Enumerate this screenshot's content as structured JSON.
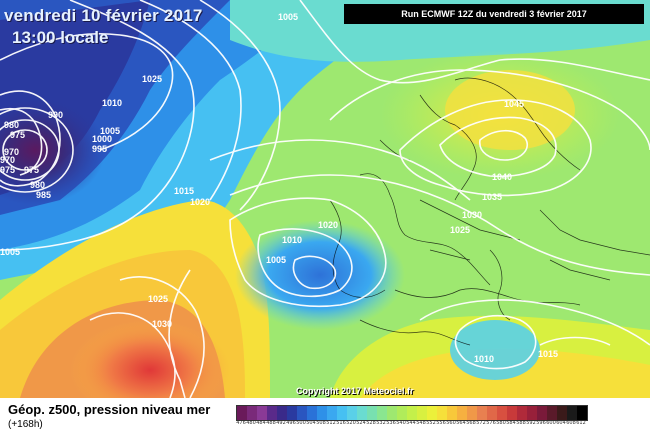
{
  "header": {
    "date": "vendredi 10 février 2017",
    "time": "13:00 locale",
    "run": "Run ECMWF 12Z du vendredi 3 février 2017"
  },
  "copyright": "Copyright 2017 Meteociel.fr",
  "footer": {
    "title": "Géop. z500, pression niveau mer",
    "subtitle": "(+168h)"
  },
  "legend": {
    "colors": [
      "#6a1a5a",
      "#7a2a7a",
      "#8a3a96",
      "#5a2a8a",
      "#3a2a8a",
      "#2a3aa0",
      "#2a56c0",
      "#2a72d8",
      "#2e90e8",
      "#3aa8f0",
      "#46c0f2",
      "#5ad0e8",
      "#6adcd0",
      "#78e0b0",
      "#8ae690",
      "#9ee870",
      "#b0ec5a",
      "#c4f04a",
      "#d8f040",
      "#ecf03a",
      "#f6e03a",
      "#f8c83a",
      "#f6b040",
      "#f09848",
      "#e88050",
      "#e06848",
      "#d85040",
      "#c83a3a",
      "#b02a3a",
      "#98203a",
      "#7a1a3a",
      "#5a1a2a",
      "#3a1a1a",
      "#1a1a1a",
      "#000000"
    ],
    "ticks": [
      "476",
      "480",
      "484",
      "488",
      "492",
      "496",
      "500",
      "504",
      "508",
      "512",
      "516",
      "520",
      "524",
      "528",
      "532",
      "536",
      "540",
      "544",
      "548",
      "552",
      "556",
      "560",
      "564",
      "568",
      "572",
      "576",
      "580",
      "584",
      "588",
      "592",
      "596",
      "600",
      "604",
      "608",
      "612"
    ]
  },
  "isobar_labels": [
    "1005",
    "1025",
    "1010",
    "990",
    "980",
    "975",
    "970",
    "975",
    "1000",
    "995",
    "1005",
    "985",
    "980",
    "975",
    "970",
    "1005",
    "1015",
    "1020",
    "1025",
    "1030",
    "1010",
    "1005",
    "1020",
    "1045",
    "1040",
    "1035",
    "1030",
    "1025",
    "1010",
    "1015"
  ]
}
